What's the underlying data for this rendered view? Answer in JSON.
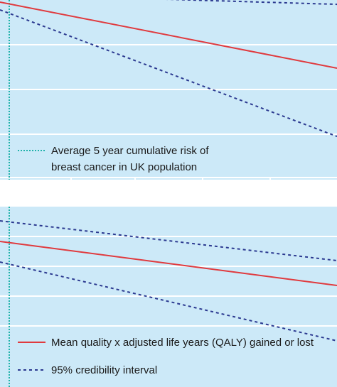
{
  "chart_data": [
    {
      "type": "line",
      "panel": "top",
      "x": [
        0,
        1
      ],
      "series": [
        {
          "role": "mean",
          "values": [
            0.0,
            -0.6
          ],
          "color": "#e03a3e",
          "style": "solid"
        },
        {
          "role": "ci_upper",
          "values": [
            0.07,
            -0.02
          ],
          "color": "#2b3990",
          "style": "dashed"
        },
        {
          "role": "ci_lower",
          "values": [
            -0.07,
            -1.22
          ],
          "color": "#2b3990",
          "style": "dashed"
        }
      ],
      "reference_line": {
        "label": "Average 5 year cumulative risk of breast cancer in UK population",
        "color": "#20b2aa",
        "style": "dotted"
      },
      "legend": [
        {
          "label_line1": "Average 5 year cumulative risk of",
          "label_line2": "breast cancer in UK population",
          "color": "#20b2aa",
          "style": "dotted"
        }
      ],
      "grid": true,
      "background": "#cce9f8"
    },
    {
      "type": "line",
      "panel": "bottom",
      "x": [
        0,
        1
      ],
      "series": [
        {
          "name": "Mean quality x adjusted life years (QALY) gained or lost",
          "values": [
            0.0,
            -0.62
          ],
          "color": "#e03a3e",
          "style": "solid"
        },
        {
          "name": "95% credibility interval",
          "values": [
            0.29,
            -0.27
          ],
          "color": "#2b3990",
          "style": "dashed"
        },
        {
          "role": "ci_lower",
          "values": [
            -0.29,
            -1.4
          ],
          "color": "#2b3990",
          "style": "dashed"
        }
      ],
      "legend": [
        {
          "label": "Mean quality x adjusted life years (QALY) gained or lost",
          "color": "#e03a3e",
          "style": "solid"
        },
        {
          "label": "95% credibility interval",
          "color": "#2b3990",
          "style": "dashed"
        }
      ],
      "grid": true,
      "background": "#cce9f8"
    }
  ],
  "colors": {
    "background": "#cce9f8",
    "grid": "#ffffff",
    "mean": "#e03a3e",
    "ci": "#2b3990",
    "reference": "#20b2aa"
  }
}
